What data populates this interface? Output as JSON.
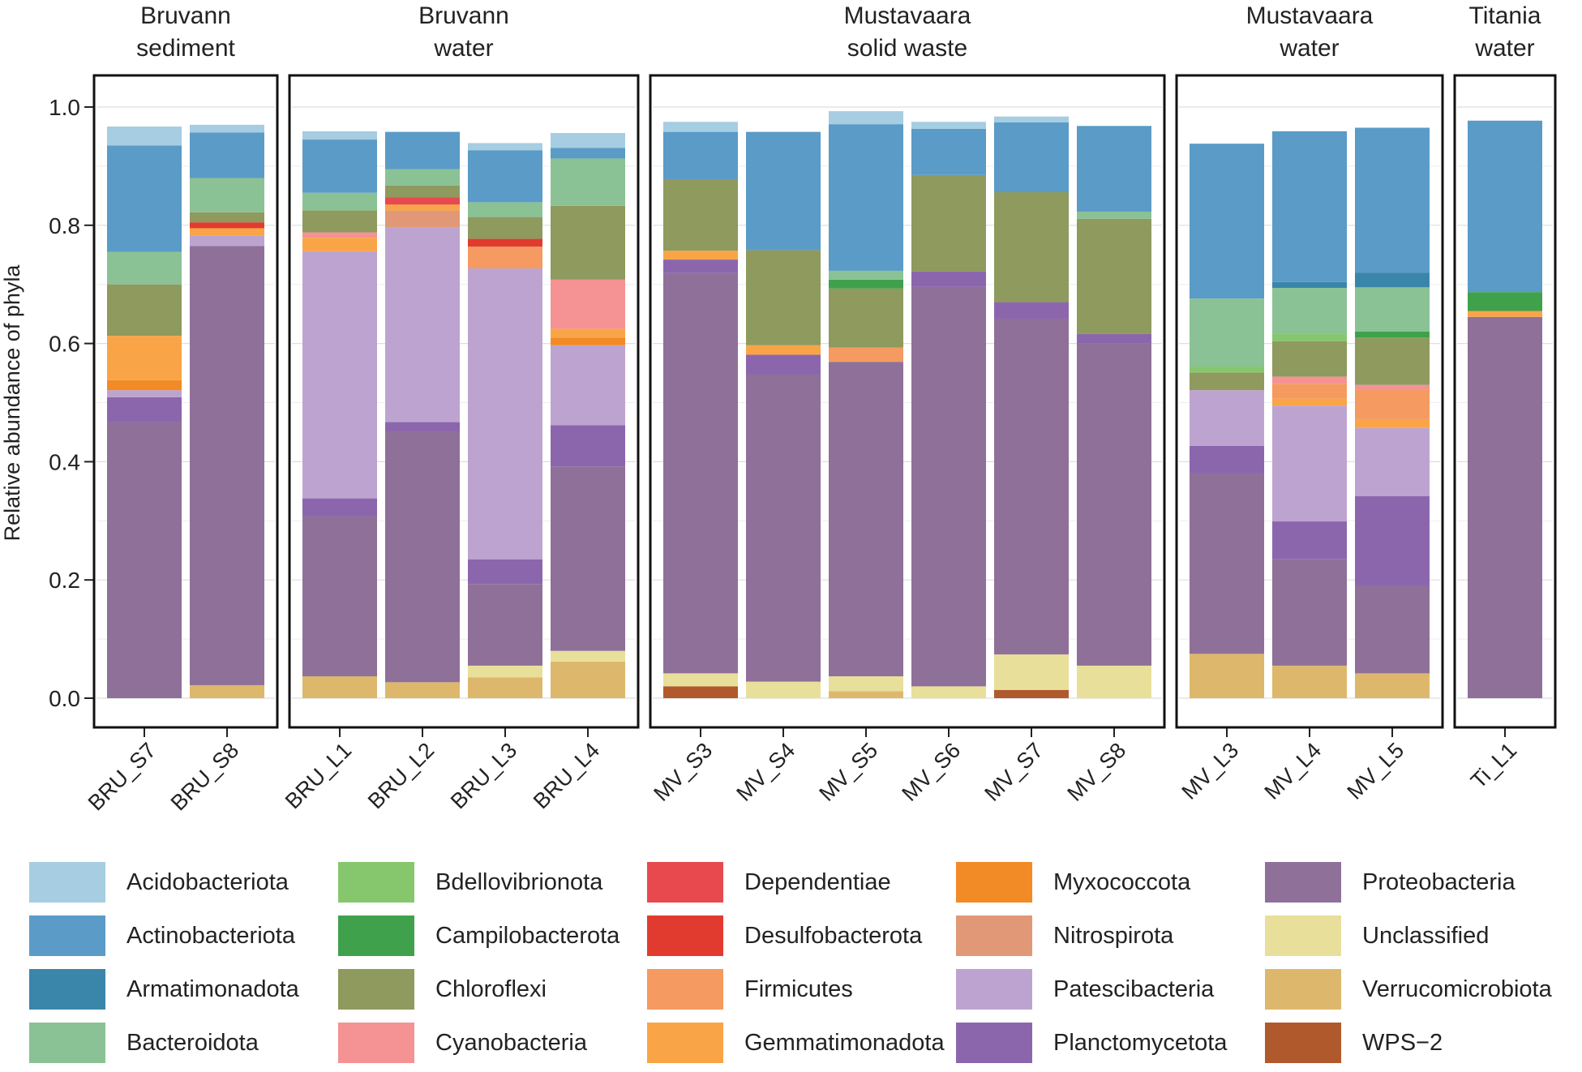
{
  "chart_data": {
    "type": "stacked-bar",
    "ylabel": "Relative abundance of phyla",
    "ylim": [
      0,
      1.0
    ],
    "yticks": [
      0.0,
      0.2,
      0.4,
      0.6,
      0.8,
      1.0
    ],
    "ytick_labels": [
      "0.0",
      "0.2",
      "0.4",
      "0.6",
      "0.8",
      "1.0"
    ],
    "grid": true,
    "legend_position": "bottom",
    "phyla": [
      {
        "name": "Acidobacteriota",
        "color": "#a6cde2"
      },
      {
        "name": "Actinobacteriota",
        "color": "#5a9bc7"
      },
      {
        "name": "Armatimonadota",
        "color": "#3a86ab"
      },
      {
        "name": "Bacteroidota",
        "color": "#8ac295"
      },
      {
        "name": "Bdellovibrionota",
        "color": "#86c76d"
      },
      {
        "name": "Campilobacterota",
        "color": "#3fa14b"
      },
      {
        "name": "Chloroflexi",
        "color": "#8e9a5e"
      },
      {
        "name": "Cyanobacteria",
        "color": "#f49294"
      },
      {
        "name": "Dependentiae",
        "color": "#e8494f"
      },
      {
        "name": "Desulfobacterota",
        "color": "#e13b2f"
      },
      {
        "name": "Firmicutes",
        "color": "#f59a60"
      },
      {
        "name": "Gemmatimonadota",
        "color": "#f9a547"
      },
      {
        "name": "Myxococcota",
        "color": "#f28a26"
      },
      {
        "name": "Nitrospirota",
        "color": "#e19876"
      },
      {
        "name": "Patescibacteria",
        "color": "#bda4d0"
      },
      {
        "name": "Planctomycetota",
        "color": "#8c66ad"
      },
      {
        "name": "Proteobacteria",
        "color": "#8f7099"
      },
      {
        "name": "Unclassified",
        "color": "#e8e09a"
      },
      {
        "name": "Verrucomicrobiota",
        "color": "#ddb86c"
      },
      {
        "name": "WPS−2",
        "color": "#b0592c"
      }
    ],
    "panels": [
      {
        "title": [
          "Bruvann",
          "sediment"
        ],
        "samples": [
          {
            "name": "BRU_S7",
            "layers": [
              [
                "Verrucomicrobiota",
                0
              ],
              [
                "Unclassified",
                0
              ],
              [
                "Proteobacteria",
                0.467
              ],
              [
                "Planctomycetota",
                0.042
              ],
              [
                "Patescibacteria",
                0.012
              ],
              [
                "Myxococcota",
                0.017
              ],
              [
                "Gemmatimonadota",
                0.075
              ],
              [
                "Chloroflexi",
                0.087
              ],
              [
                "Bacteroidota",
                0.055
              ],
              [
                "Actinobacteriota",
                0.18
              ],
              [
                "Acidobacteriota",
                0.032
              ]
            ]
          },
          {
            "name": "BRU_S8",
            "layers": [
              [
                "Verrucomicrobiota",
                0.022
              ],
              [
                "Proteobacteria",
                0.743
              ],
              [
                "Patescibacteria",
                0.018
              ],
              [
                "Gemmatimonadota",
                0.012
              ],
              [
                "Desulfobacterota",
                0.01
              ],
              [
                "Chloroflexi",
                0.017
              ],
              [
                "Bacteroidota",
                0.058
              ],
              [
                "Actinobacteriota",
                0.077
              ],
              [
                "Acidobacteriota",
                0.013
              ]
            ]
          }
        ]
      },
      {
        "title": [
          "Bruvann",
          "water"
        ],
        "samples": [
          {
            "name": "BRU_L1",
            "layers": [
              [
                "Verrucomicrobiota",
                0.037
              ],
              [
                "Proteobacteria",
                0.271
              ],
              [
                "Planctomycetota",
                0.03
              ],
              [
                "Patescibacteria",
                0.418
              ],
              [
                "Gemmatimonadota",
                0.023
              ],
              [
                "Cyanobacteria",
                0.009
              ],
              [
                "Chloroflexi",
                0.037
              ],
              [
                "Bacteroidota",
                0.03
              ],
              [
                "Actinobacteriota",
                0.09
              ],
              [
                "Acidobacteriota",
                0.014
              ]
            ]
          },
          {
            "name": "BRU_L2",
            "layers": [
              [
                "Verrucomicrobiota",
                0.027
              ],
              [
                "Proteobacteria",
                0.423
              ],
              [
                "Planctomycetota",
                0.017
              ],
              [
                "Patescibacteria",
                0.33
              ],
              [
                "Nitrospirota",
                0.028
              ],
              [
                "Gemmatimonadota",
                0.01
              ],
              [
                "Dependentiae",
                0.012
              ],
              [
                "Chloroflexi",
                0.02
              ],
              [
                "Bacteroidota",
                0.028
              ],
              [
                "Actinobacteriota",
                0.063
              ]
            ]
          },
          {
            "name": "BRU_L3",
            "layers": [
              [
                "Verrucomicrobiota",
                0.035
              ],
              [
                "Unclassified",
                0.02
              ],
              [
                "Proteobacteria",
                0.138
              ],
              [
                "Planctomycetota",
                0.042
              ],
              [
                "Patescibacteria",
                0.492
              ],
              [
                "Firmicutes",
                0.037
              ],
              [
                "Desulfobacterota",
                0.013
              ],
              [
                "Chloroflexi",
                0.037
              ],
              [
                "Bacteroidota",
                0.025
              ],
              [
                "Actinobacteriota",
                0.088
              ],
              [
                "Acidobacteriota",
                0.012
              ]
            ]
          },
          {
            "name": "BRU_L4",
            "layers": [
              [
                "Verrucomicrobiota",
                0.062
              ],
              [
                "Unclassified",
                0.018
              ],
              [
                "Proteobacteria",
                0.312
              ],
              [
                "Planctomycetota",
                0.07
              ],
              [
                "Patescibacteria",
                0.135
              ],
              [
                "Myxococcota",
                0.013
              ],
              [
                "Gemmatimonadota",
                0.015
              ],
              [
                "Cyanobacteria",
                0.083
              ],
              [
                "Chloroflexi",
                0.125
              ],
              [
                "Bacteroidota",
                0.08
              ],
              [
                "Actinobacteriota",
                0.018
              ],
              [
                "Acidobacteriota",
                0.025
              ]
            ]
          }
        ]
      },
      {
        "title": [
          "Mustavaara",
          "solid waste"
        ],
        "samples": [
          {
            "name": "MV_S3",
            "layers": [
              [
                "WPS−2",
                0.02
              ],
              [
                "Unclassified",
                0.022
              ],
              [
                "Proteobacteria",
                0.677
              ],
              [
                "Planctomycetota",
                0.023
              ],
              [
                "Gemmatimonadota",
                0.015
              ],
              [
                "Chloroflexi",
                0.121
              ],
              [
                "Actinobacteriota",
                0.08
              ],
              [
                "Acidobacteriota",
                0.017
              ]
            ]
          },
          {
            "name": "MV_S4",
            "layers": [
              [
                "Unclassified",
                0.028
              ],
              [
                "Proteobacteria",
                0.52
              ],
              [
                "Planctomycetota",
                0.033
              ],
              [
                "Gemmatimonadota",
                0.016
              ],
              [
                "Chloroflexi",
                0.161
              ],
              [
                "Actinobacteriota",
                0.2
              ]
            ]
          },
          {
            "name": "MV_S5",
            "layers": [
              [
                "Verrucomicrobiota",
                0.012
              ],
              [
                "Unclassified",
                0.025
              ],
              [
                "Proteobacteria",
                0.532
              ],
              [
                "Firmicutes",
                0.024
              ],
              [
                "Chloroflexi",
                0.1
              ],
              [
                "Campilobacterota",
                0.015
              ],
              [
                "Bacteroidota",
                0.015
              ],
              [
                "Actinobacteriota",
                0.248
              ],
              [
                "Acidobacteriota",
                0.022
              ]
            ]
          },
          {
            "name": "MV_S6",
            "layers": [
              [
                "Unclassified",
                0.02
              ],
              [
                "Proteobacteria",
                0.676
              ],
              [
                "Planctomycetota",
                0.026
              ],
              [
                "Chloroflexi",
                0.163
              ],
              [
                "Actinobacteriota",
                0.078
              ],
              [
                "Acidobacteriota",
                0.012
              ]
            ]
          },
          {
            "name": "MV_S7",
            "layers": [
              [
                "WPS−2",
                0.014
              ],
              [
                "Unclassified",
                0.06
              ],
              [
                "Proteobacteria",
                0.568
              ],
              [
                "Planctomycetota",
                0.028
              ],
              [
                "Chloroflexi",
                0.186
              ],
              [
                "Actinobacteriota",
                0.118
              ],
              [
                "Acidobacteriota",
                0.01
              ]
            ]
          },
          {
            "name": "MV_S8",
            "layers": [
              [
                "Unclassified",
                0.055
              ],
              [
                "Proteobacteria",
                0.545
              ],
              [
                "Planctomycetota",
                0.016
              ],
              [
                "Chloroflexi",
                0.195
              ],
              [
                "Bacteroidota",
                0.012
              ],
              [
                "Actinobacteriota",
                0.145
              ]
            ]
          }
        ]
      },
      {
        "title": [
          "Mustavaara",
          "water"
        ],
        "samples": [
          {
            "name": "MV_L3",
            "layers": [
              [
                "Verrucomicrobiota",
                0.075
              ],
              [
                "Proteobacteria",
                0.305
              ],
              [
                "Planctomycetota",
                0.047
              ],
              [
                "Patescibacteria",
                0.094
              ],
              [
                "Chloroflexi",
                0.03
              ],
              [
                "Bdellovibrionota",
                0.01
              ],
              [
                "Bacteroidota",
                0.115
              ],
              [
                "Actinobacteriota",
                0.262
              ]
            ]
          },
          {
            "name": "MV_L4",
            "layers": [
              [
                "Verrucomicrobiota",
                0.055
              ],
              [
                "Proteobacteria",
                0.18
              ],
              [
                "Planctomycetota",
                0.064
              ],
              [
                "Patescibacteria",
                0.196
              ],
              [
                "Gemmatimonadota",
                0.012
              ],
              [
                "Firmicutes",
                0.025
              ],
              [
                "Cyanobacteria",
                0.012
              ],
              [
                "Chloroflexi",
                0.06
              ],
              [
                "Bdellovibrionota",
                0.012
              ],
              [
                "Bacteroidota",
                0.078
              ],
              [
                "Armatimonadota",
                0.01
              ],
              [
                "Actinobacteriota",
                0.255
              ]
            ]
          },
          {
            "name": "MV_L5",
            "layers": [
              [
                "Verrucomicrobiota",
                0.042
              ],
              [
                "Proteobacteria",
                0.148
              ],
              [
                "Planctomycetota",
                0.152
              ],
              [
                "Patescibacteria",
                0.115
              ],
              [
                "Gemmatimonadota",
                0.015
              ],
              [
                "Firmicutes",
                0.05
              ],
              [
                "Cyanobacteria",
                0.008
              ],
              [
                "Chloroflexi",
                0.08
              ],
              [
                "Campilobacterota",
                0.01
              ],
              [
                "Bacteroidota",
                0.075
              ],
              [
                "Armatimonadota",
                0.025
              ],
              [
                "Actinobacteriota",
                0.245
              ]
            ]
          }
        ]
      },
      {
        "title": [
          "Titania",
          "water"
        ],
        "samples": [
          {
            "name": "Ti_L1",
            "layers": [
              [
                "Proteobacteria",
                0.645
              ],
              [
                "Gemmatimonadota",
                0.01
              ],
              [
                "Campilobacterota",
                0.032
              ],
              [
                "Actinobacteriota",
                0.29
              ]
            ]
          }
        ]
      }
    ]
  }
}
